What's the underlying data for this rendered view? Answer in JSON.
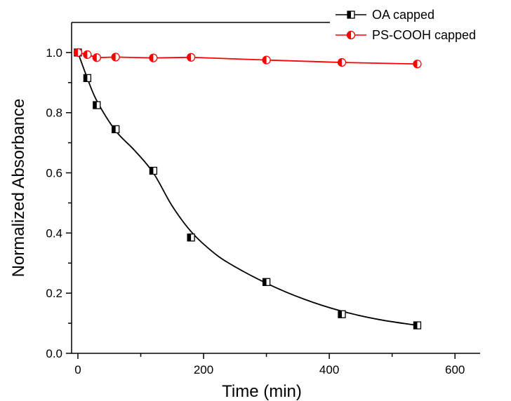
{
  "chart_data": {
    "type": "line",
    "title": "",
    "xlabel": "Time (min)",
    "ylabel": "Normalized Absorbance",
    "xlim": [
      -10,
      640
    ],
    "ylim": [
      0.0,
      1.1
    ],
    "x_ticks": [
      0,
      200,
      400,
      600
    ],
    "x_tick_labels": [
      "0",
      "200",
      "400",
      "600"
    ],
    "y_ticks": [
      0.0,
      0.2,
      0.4,
      0.6,
      0.8,
      1.0
    ],
    "y_tick_labels": [
      "0.0",
      "0.2",
      "0.4",
      "0.6",
      "0.8",
      "1.0"
    ],
    "grid": false,
    "legend_position": "top-right",
    "series": [
      {
        "name": "OA capped",
        "color": "#000000",
        "marker": "half-filled-square",
        "x": [
          0,
          15,
          30,
          60,
          120,
          180,
          300,
          420,
          540
        ],
        "y": [
          1.0,
          0.915,
          0.825,
          0.745,
          0.607,
          0.385,
          0.237,
          0.13,
          0.093
        ]
      },
      {
        "name": "PS-COOH capped",
        "color": "#ff0000",
        "marker": "half-filled-circle",
        "x": [
          0,
          15,
          30,
          60,
          120,
          180,
          300,
          420,
          540
        ],
        "y": [
          1.0,
          0.993,
          0.983,
          0.985,
          0.982,
          0.984,
          0.975,
          0.967,
          0.962
        ]
      }
    ],
    "fit_curves": [
      {
        "series": "OA capped",
        "color": "#000000",
        "x": [
          0,
          15,
          30,
          60,
          90,
          120,
          150,
          180,
          210,
          240,
          300,
          360,
          420,
          480,
          540
        ],
        "y": [
          1.0,
          0.915,
          0.84,
          0.74,
          0.675,
          0.6,
          0.49,
          0.405,
          0.345,
          0.3,
          0.233,
          0.18,
          0.14,
          0.112,
          0.093
        ]
      }
    ]
  }
}
